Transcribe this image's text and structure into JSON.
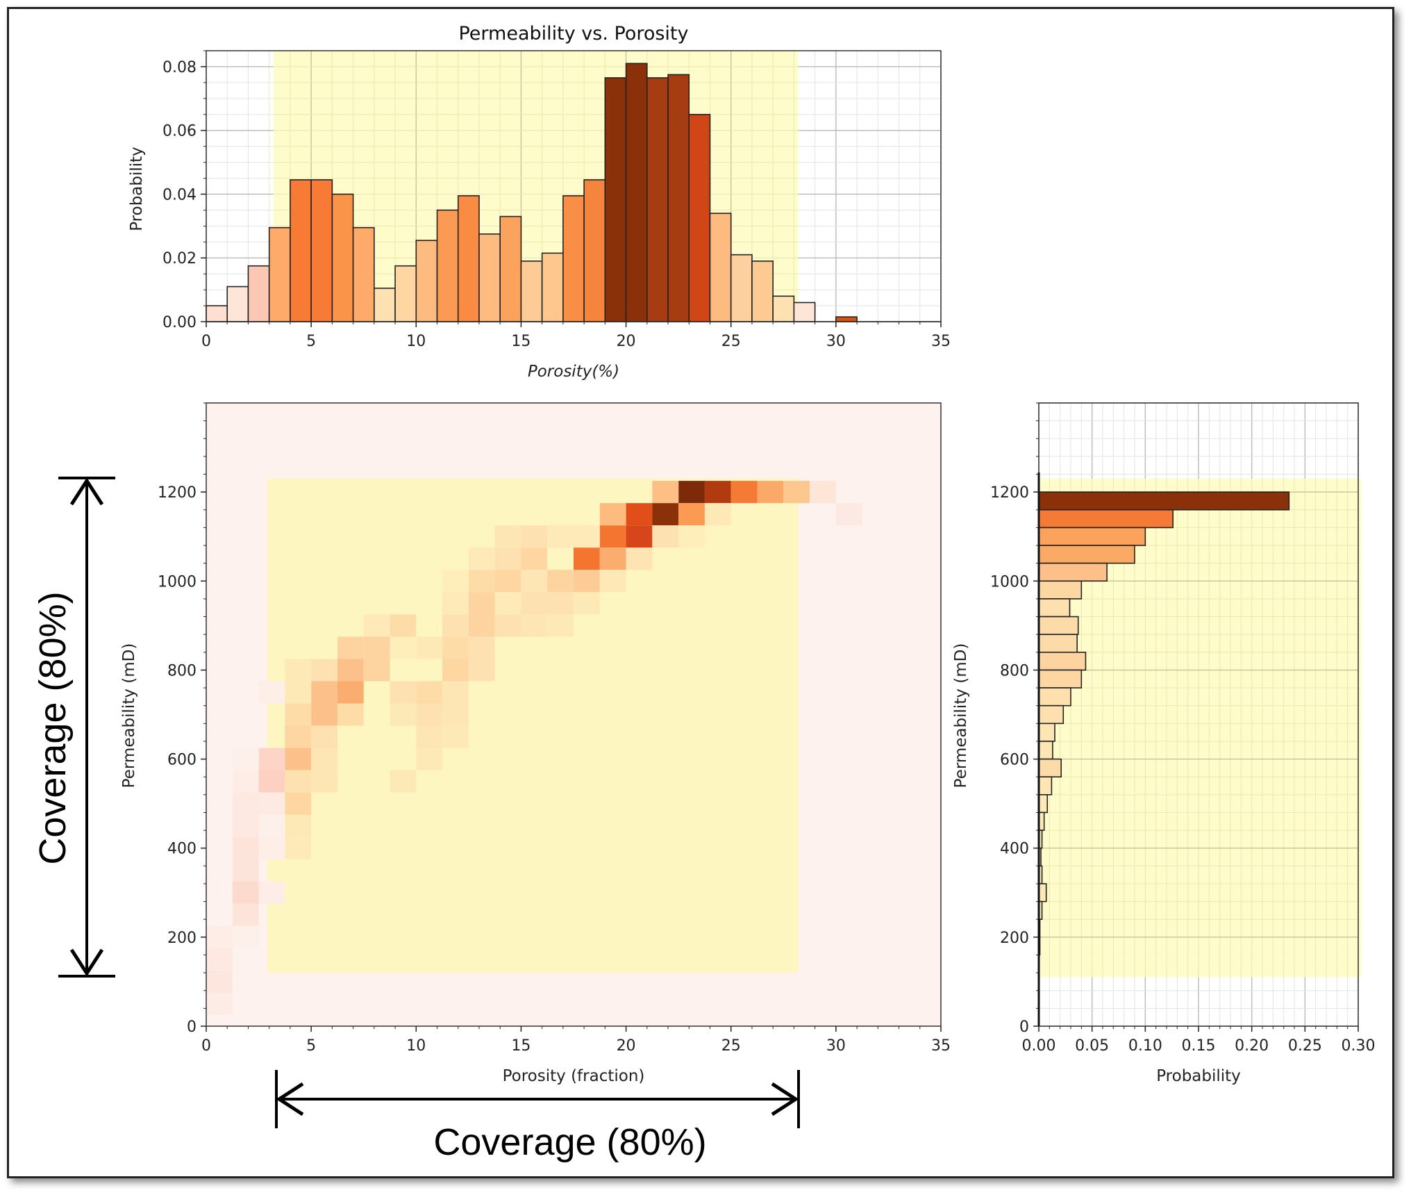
{
  "chart_data": [
    {
      "id": "top",
      "type": "bar",
      "title": "Permeability vs. Porosity",
      "xlabel": "Porosity(%)",
      "ylabel": "Probability",
      "xlim": [
        0,
        35
      ],
      "ylim": [
        0,
        0.085
      ],
      "xticks": [
        0,
        5,
        10,
        15,
        20,
        25,
        30,
        35
      ],
      "yticks": [
        0.0,
        0.02,
        0.04,
        0.06,
        0.08
      ],
      "ytick_labels": [
        "0.00",
        "0.02",
        "0.04",
        "0.06",
        "0.08"
      ],
      "grid": true,
      "coverage_band": [
        3.2,
        28.2
      ],
      "bin_width": 1,
      "bin_starts": [
        0,
        1,
        2,
        3,
        4,
        5,
        6,
        7,
        8,
        9,
        10,
        11,
        12,
        13,
        14,
        15,
        16,
        17,
        18,
        19,
        20,
        21,
        22,
        23,
        24,
        25,
        26,
        27,
        28,
        29,
        30
      ],
      "values": [
        0.005,
        0.011,
        0.0175,
        0.0295,
        0.0445,
        0.0445,
        0.04,
        0.0295,
        0.0105,
        0.0175,
        0.0255,
        0.035,
        0.0395,
        0.0275,
        0.033,
        0.019,
        0.0215,
        0.0395,
        0.0445,
        0.0765,
        0.081,
        0.0765,
        0.0775,
        0.065,
        0.034,
        0.021,
        0.019,
        0.008,
        0.006,
        0.0,
        0.0015
      ],
      "colors": [
        "#fde0d2",
        "#fde5d7",
        "#fcc7b4",
        "#fdaa6b",
        "#f77a35",
        "#f77a35",
        "#fa9449",
        "#fdaa6b",
        "#fde1b0",
        "#fdd6a1",
        "#fdbb7f",
        "#fb9a52",
        "#f98b42",
        "#fdbb7f",
        "#fba35c",
        "#fdcb95",
        "#fdc78d",
        "#f98f46",
        "#f5843d",
        "#8a3109",
        "#8a3109",
        "#a63d12",
        "#a63d12",
        "#d04617",
        "#fdbb7f",
        "#fdd0a0",
        "#fdca92",
        "#fde1b0",
        "#fde5d7",
        "#ffffff",
        "#d8510f"
      ]
    },
    {
      "id": "scatter2d",
      "type": "heatmap",
      "xlabel": "Porosity (fraction)",
      "ylabel": "Permeability (mD)",
      "xlim": [
        0,
        35
      ],
      "ylim": [
        0,
        1400
      ],
      "xticks": [
        0,
        5,
        10,
        15,
        20,
        25,
        30,
        35
      ],
      "yticks": [
        0,
        200,
        400,
        600,
        800,
        1000,
        1200
      ],
      "coverage_x": [
        2.9,
        28.2
      ],
      "coverage_y": [
        120,
        1230
      ],
      "cell_width": 1.25,
      "cell_height": 50,
      "cells": [
        [
          22.5,
          1175,
          "#7d2a0a"
        ],
        [
          23.75,
          1175,
          "#b23a0f"
        ],
        [
          25,
          1175,
          "#f47a36"
        ],
        [
          26.25,
          1175,
          "#fba968"
        ],
        [
          27.5,
          1175,
          "#fdc890"
        ],
        [
          21.25,
          1175,
          "#fdbf86"
        ],
        [
          28.75,
          1175,
          "#fde5d7"
        ],
        [
          20,
          1125,
          "#e24e1a"
        ],
        [
          21.25,
          1125,
          "#8a3109"
        ],
        [
          22.5,
          1125,
          "#fb9a52"
        ],
        [
          18.75,
          1125,
          "#fdbb7f"
        ],
        [
          23.75,
          1125,
          "#fde8b6"
        ],
        [
          30,
          1125,
          "#fde9e3"
        ],
        [
          20,
          1075,
          "#d6461a"
        ],
        [
          18.75,
          1075,
          "#f4752f"
        ],
        [
          21.25,
          1075,
          "#fde1b0"
        ],
        [
          16.25,
          1075,
          "#fdeab8"
        ],
        [
          15,
          1075,
          "#fde1b0"
        ],
        [
          13.75,
          1075,
          "#fde6b4"
        ],
        [
          17.5,
          1075,
          "#fdeab8"
        ],
        [
          22.5,
          1075,
          "#fdeeba"
        ],
        [
          17.5,
          1025,
          "#f4752f"
        ],
        [
          18.75,
          1025,
          "#fbad6f"
        ],
        [
          20,
          1025,
          "#fde4b2"
        ],
        [
          15,
          1025,
          "#fdd6a1"
        ],
        [
          13.75,
          1025,
          "#fde1b0"
        ],
        [
          12.5,
          1025,
          "#fdeab8"
        ],
        [
          16.25,
          975,
          "#fdd3a0"
        ],
        [
          17.5,
          975,
          "#fdcb95"
        ],
        [
          12.5,
          975,
          "#fddca8"
        ],
        [
          13.75,
          975,
          "#fdd6a1"
        ],
        [
          15,
          975,
          "#fde6b4"
        ],
        [
          18.75,
          975,
          "#fde8b6"
        ],
        [
          11.25,
          975,
          "#fdeeba"
        ],
        [
          12.5,
          925,
          "#fdd3a0"
        ],
        [
          15,
          925,
          "#fde1b0"
        ],
        [
          16.25,
          925,
          "#fde1b0"
        ],
        [
          13.75,
          925,
          "#fdeab8"
        ],
        [
          17.5,
          925,
          "#fde9b6"
        ],
        [
          11.25,
          925,
          "#fdeab8"
        ],
        [
          12.5,
          875,
          "#fdd3a0"
        ],
        [
          8.75,
          875,
          "#fddca8"
        ],
        [
          11.25,
          875,
          "#fde1b0"
        ],
        [
          13.75,
          875,
          "#fde1b0"
        ],
        [
          15,
          875,
          "#fde6b4"
        ],
        [
          16.25,
          875,
          "#fde9b6"
        ],
        [
          7.5,
          875,
          "#fdeab8"
        ],
        [
          6.25,
          825,
          "#fdd3a0"
        ],
        [
          7.5,
          825,
          "#fdd3a0"
        ],
        [
          11.25,
          825,
          "#fddca8"
        ],
        [
          12.5,
          825,
          "#fde1b0"
        ],
        [
          10,
          825,
          "#fde9b6"
        ],
        [
          8.75,
          825,
          "#fdeeba"
        ],
        [
          6.25,
          775,
          "#fcc08a"
        ],
        [
          7.5,
          775,
          "#fdd3a0"
        ],
        [
          11.25,
          775,
          "#fdd6a1"
        ],
        [
          12.5,
          775,
          "#fde1b0"
        ],
        [
          5,
          775,
          "#fde1b0"
        ],
        [
          3.75,
          775,
          "#fde9b6"
        ],
        [
          6.25,
          725,
          "#fbad6f"
        ],
        [
          5,
          725,
          "#fcc08a"
        ],
        [
          10,
          725,
          "#fddca8"
        ],
        [
          8.75,
          725,
          "#fde1b0"
        ],
        [
          11.25,
          725,
          "#fde6b4"
        ],
        [
          3.75,
          725,
          "#fde9b6"
        ],
        [
          2.5,
          725,
          "#fdeee7"
        ],
        [
          5,
          675,
          "#fcc08a"
        ],
        [
          3.75,
          675,
          "#fddca8"
        ],
        [
          6.25,
          675,
          "#fddca8"
        ],
        [
          10,
          675,
          "#fde1b0"
        ],
        [
          11.25,
          675,
          "#fde6b4"
        ],
        [
          8.75,
          675,
          "#fde9b6"
        ],
        [
          3.75,
          625,
          "#fdd6a1"
        ],
        [
          5,
          625,
          "#fde1b0"
        ],
        [
          10,
          625,
          "#fde6b4"
        ],
        [
          11.25,
          625,
          "#fde9b6"
        ],
        [
          3.75,
          575,
          "#fcc08a"
        ],
        [
          2.5,
          575,
          "#fcd5c6"
        ],
        [
          5,
          575,
          "#fde6b4"
        ],
        [
          1.25,
          575,
          "#fdf0ea"
        ],
        [
          10,
          575,
          "#fde9b6"
        ],
        [
          2.5,
          525,
          "#fcd1c2"
        ],
        [
          3.75,
          525,
          "#fde1b0"
        ],
        [
          5,
          525,
          "#fde6b4"
        ],
        [
          8.75,
          525,
          "#fde9b6"
        ],
        [
          1.25,
          525,
          "#fdede6"
        ],
        [
          3.75,
          475,
          "#fdd6a1"
        ],
        [
          1.25,
          475,
          "#fde9e1"
        ],
        [
          2.5,
          475,
          "#fdebe3"
        ],
        [
          3.75,
          425,
          "#fde9b6"
        ],
        [
          1.25,
          425,
          "#fde9e1"
        ],
        [
          2.5,
          425,
          "#fdf0ea"
        ],
        [
          1.25,
          375,
          "#fde4db"
        ],
        [
          2.5,
          375,
          "#fdeee7"
        ],
        [
          3.75,
          375,
          "#fdeab8"
        ],
        [
          1.25,
          325,
          "#fde4db"
        ],
        [
          1.25,
          275,
          "#fcdacd"
        ],
        [
          2.5,
          275,
          "#fdede6"
        ],
        [
          1.25,
          225,
          "#fde4db"
        ],
        [
          0,
          175,
          "#fdede6"
        ],
        [
          1.25,
          175,
          "#fdf0ea"
        ],
        [
          0,
          125,
          "#fde9e1"
        ],
        [
          0,
          75,
          "#fde6dd"
        ],
        [
          0,
          25,
          "#fdece5"
        ]
      ]
    },
    {
      "id": "right",
      "type": "bar",
      "orientation": "horizontal",
      "xlabel": "Probability",
      "ylabel": "Permeability (mD)",
      "xlim": [
        0,
        0.3
      ],
      "ylim": [
        0,
        1400
      ],
      "xticks": [
        0.0,
        0.05,
        0.1,
        0.15,
        0.2,
        0.25,
        0.3
      ],
      "xtick_labels": [
        "0.00",
        "0.05",
        "0.10",
        "0.15",
        "0.20",
        "0.25",
        "0.30"
      ],
      "yticks": [
        0,
        200,
        400,
        600,
        800,
        1000,
        1200
      ],
      "coverage_band": [
        110,
        1230
      ],
      "bin_height": 40,
      "bin_starts": [
        1160,
        1120,
        1080,
        1040,
        1000,
        960,
        920,
        880,
        840,
        800,
        760,
        720,
        680,
        640,
        600,
        560,
        520,
        480,
        440,
        400,
        360,
        320,
        280,
        240,
        200,
        160
      ],
      "values": [
        0.235,
        0.126,
        0.1,
        0.09,
        0.064,
        0.04,
        0.029,
        0.037,
        0.036,
        0.044,
        0.04,
        0.03,
        0.023,
        0.015,
        0.013,
        0.021,
        0.012,
        0.008,
        0.005,
        0.003,
        0.002,
        0.003,
        0.007,
        0.003,
        0.001,
        0.001
      ],
      "colors": [
        "#8a3109",
        "#f47a36",
        "#fba35c",
        "#fbaa66",
        "#fdc08a",
        "#fdd7a2",
        "#fde0ae",
        "#fddba8",
        "#fddba8",
        "#fdd3a0",
        "#fdd7a2",
        "#fde0ae",
        "#fde0ae",
        "#fde6b4",
        "#fde6b4",
        "#fddba8",
        "#fde6b4",
        "#fde9b6",
        "#fde9b6",
        "#fde9b6",
        "#fde9b6",
        "#fde9b6",
        "#fde9b6",
        "#fde9b6",
        "#fde9b6",
        "#fde9b6"
      ]
    }
  ],
  "annotations": {
    "horizontal_coverage": "Coverage (80%)",
    "vertical_coverage": "Coverage (80%)"
  }
}
